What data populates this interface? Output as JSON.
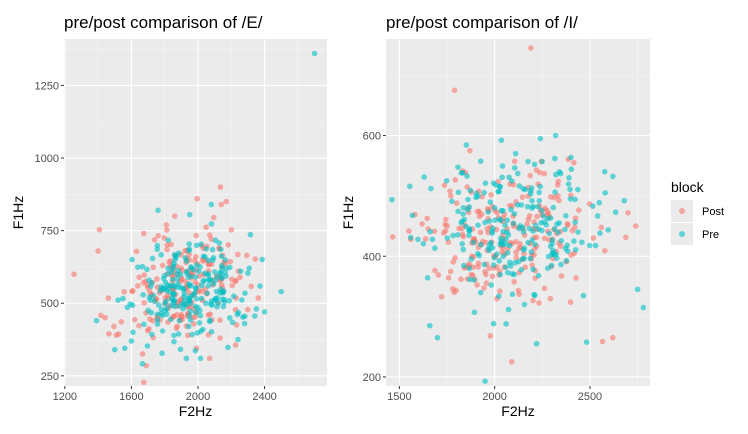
{
  "chart_data": [
    {
      "type": "scatter",
      "title": "pre/post comparison of /E/",
      "xlabel": "F2Hz",
      "ylabel": "F1Hz",
      "xlim": [
        1195,
        2775
      ],
      "ylim": [
        215,
        1410
      ],
      "xticks": [
        1200,
        1600,
        2000,
        2400
      ],
      "yticks": [
        250,
        500,
        750,
        1000,
        1250
      ],
      "series": [
        {
          "name": "Post",
          "cloud": {
            "n": 210,
            "mean_x": 1895,
            "mean_y": 545,
            "sd_x": 175,
            "sd_y": 95,
            "corr": 0.15
          },
          "x": [
            1255,
            1400,
            1495,
            1510,
            1690,
            1810,
            1860,
            1995,
            2135,
            2170,
            2140,
            2070
          ],
          "y": [
            600,
            680,
            420,
            390,
            285,
            770,
            800,
            860,
            900,
            850,
            840,
            310
          ]
        },
        {
          "name": "Pre",
          "cloud": {
            "n": 230,
            "mean_x": 1950,
            "mean_y": 540,
            "sd_x": 175,
            "sd_y": 90,
            "corr": 0.15
          },
          "x": [
            2700,
            1390,
            1500,
            1560,
            1600,
            1760,
            1930,
            1950,
            2015,
            2080,
            2240,
            2280,
            2400,
            2500,
            2180
          ],
          "y": [
            1360,
            440,
            340,
            345,
            370,
            820,
            310,
            805,
            310,
            840,
            375,
            430,
            470,
            540,
            348
          ]
        }
      ]
    },
    {
      "type": "scatter",
      "title": "pre/post comparison of /I/",
      "xlabel": "F2Hz",
      "ylabel": "F1Hz",
      "xlim": [
        1430,
        2815
      ],
      "ylim": [
        185,
        760
      ],
      "xticks": [
        1500,
        2000,
        2500
      ],
      "yticks": [
        200,
        400,
        600
      ],
      "series": [
        {
          "name": "Post",
          "cloud": {
            "n": 220,
            "mean_x": 2080,
            "mean_y": 430,
            "sd_x": 230,
            "sd_y": 60,
            "corr": 0.05
          },
          "x": [
            2190,
            1790,
            1465,
            1560,
            2090,
            2620,
            2700,
            2740,
            1870,
            1770
          ],
          "y": [
            745,
            675,
            432,
            428,
            225,
            265,
            472,
            450,
            575,
            500
          ]
        },
        {
          "name": "Pre",
          "cloud": {
            "n": 230,
            "mean_x": 2060,
            "mean_y": 445,
            "sd_x": 230,
            "sd_y": 60,
            "corr": 0.05
          },
          "x": [
            1950,
            2220,
            2110,
            2320,
            2390,
            2780,
            2750,
            1660,
            2060,
            2240,
            1700,
            2680,
            2580,
            2340
          ],
          "y": [
            193,
            255,
            570,
            600,
            530,
            315,
            345,
            285,
            288,
            595,
            265,
            492,
            505,
            540
          ]
        }
      ]
    }
  ],
  "legend": {
    "title": "block",
    "items": [
      {
        "label": "Post",
        "color": "#F8766D"
      },
      {
        "label": "Pre",
        "color": "#00BFC4"
      }
    ]
  },
  "colors": {
    "panel_bg": "#EBEBEB",
    "grid_major": "#FFFFFF",
    "grid_minor": "#F5F5F5",
    "point_opacity": 0.6
  }
}
